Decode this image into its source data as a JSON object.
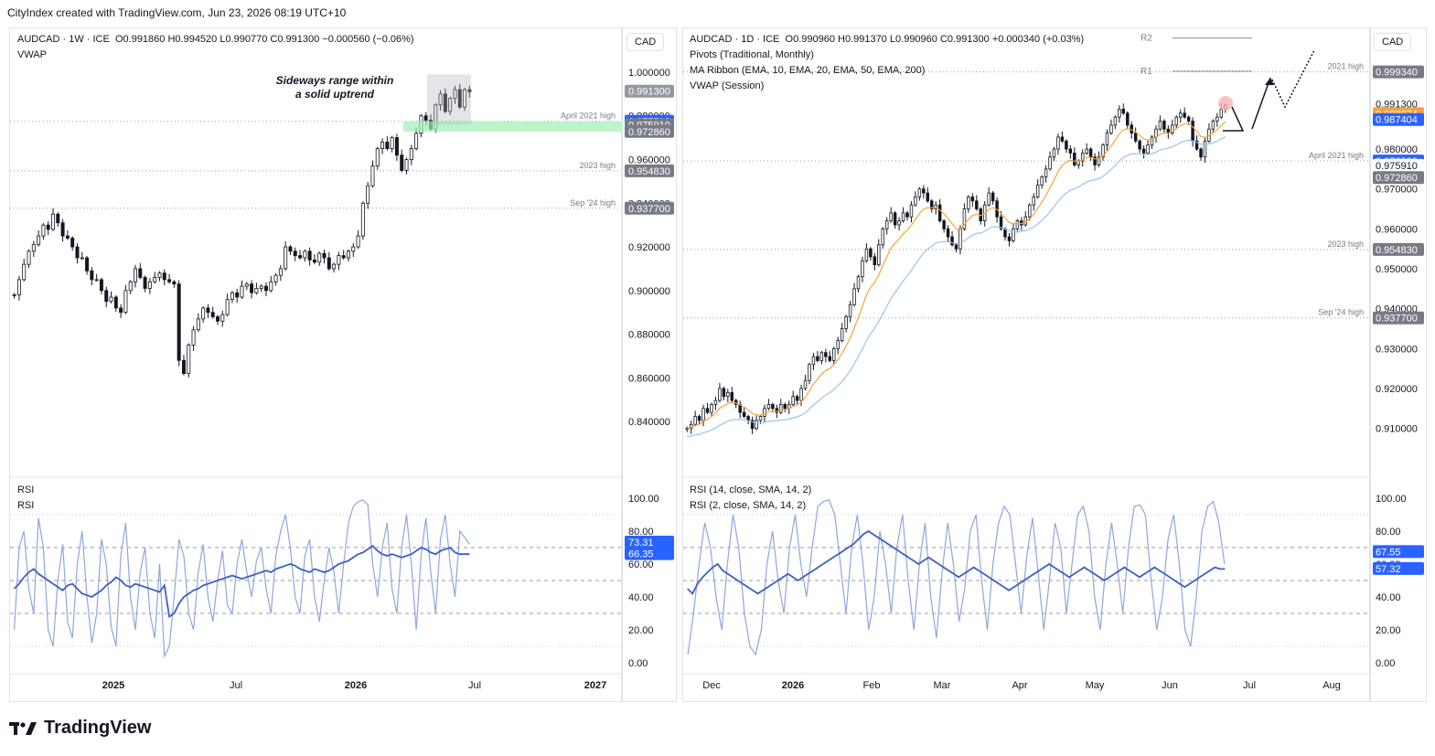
{
  "header": {
    "caption": "CityIndex created with TradingView.com, Jun 23, 2026 08:19 UTC+10"
  },
  "footer": {
    "brand": "TradingView"
  },
  "left_chart": {
    "currency": "CAD",
    "title": "AUDCAD · 1W · ICE",
    "ohlc": "O0.991860   H0.994520   L0.990770   C0.991300   −0.000560 (−0.06%)",
    "indicator": "VWAP",
    "annotation": [
      "Sideways range within",
      "a solid uptrend"
    ],
    "rsi_labels": [
      "RSI",
      "RSI"
    ]
  },
  "right_chart": {
    "currency": "CAD",
    "title": "AUDCAD · 1D · ICE",
    "ohlc": "O0.990960   H0.991370   L0.990960   C0.991300   +0.000340 (+0.03%)",
    "indicators": [
      "Pivots (Traditional, Monthly)",
      "MA Ribbon (EMA, 10, EMA, 20, EMA, 50, EMA, 200)",
      "VWAP (Session)"
    ],
    "rsi_labels": [
      "RSI (14, close, SMA, 14, 2)",
      "RSI (2, close, SMA, 14, 2)"
    ],
    "pivots": [
      "R2",
      "R1"
    ]
  },
  "chart_data": [
    {
      "type": "candlestick",
      "title": "AUDCAD · 1W · ICE",
      "x_ticks": [
        "2025",
        "Jul",
        "2026",
        "Jul",
        "2027"
      ],
      "y_ticks": [
        "1.000000",
        "0.980000",
        "0.960000",
        "0.940000",
        "0.920000",
        "0.900000",
        "0.880000",
        "0.860000",
        "0.840000"
      ],
      "ylim": [
        0.825,
        1.005
      ],
      "price_labels": [
        {
          "value": "0.991300",
          "color": "#9598a1"
        },
        {
          "value": "0.977513",
          "color": "#2962ff"
        },
        {
          "value": "0.975910",
          "color": "#787b86"
        },
        {
          "value": "0.972860",
          "color": "#787b86"
        },
        {
          "value": "0.960000",
          "color": "#ffffff"
        },
        {
          "value": "0.954830",
          "color": "#787b86"
        },
        {
          "value": "0.937700",
          "color": "#787b86"
        }
      ],
      "levels": [
        {
          "label": "April 2021 high",
          "value": 0.9775
        },
        {
          "label": "2023 high",
          "value": 0.9548
        },
        {
          "label": "Sep '24 high",
          "value": 0.9377
        }
      ],
      "close_series": [
        0.898,
        0.905,
        0.912,
        0.918,
        0.921,
        0.925,
        0.93,
        0.928,
        0.935,
        0.931,
        0.925,
        0.924,
        0.92,
        0.915,
        0.915,
        0.909,
        0.905,
        0.905,
        0.9,
        0.895,
        0.897,
        0.892,
        0.89,
        0.9,
        0.904,
        0.91,
        0.906,
        0.901,
        0.904,
        0.906,
        0.908,
        0.905,
        0.904,
        0.903,
        0.868,
        0.862,
        0.875,
        0.882,
        0.887,
        0.892,
        0.89,
        0.888,
        0.886,
        0.889,
        0.896,
        0.899,
        0.897,
        0.902,
        0.903,
        0.899,
        0.901,
        0.902,
        0.9,
        0.904,
        0.907,
        0.91,
        0.92,
        0.918,
        0.916,
        0.915,
        0.918,
        0.914,
        0.913,
        0.917,
        0.915,
        0.91,
        0.912,
        0.916,
        0.915,
        0.918,
        0.92,
        0.925,
        0.94,
        0.948,
        0.957,
        0.965,
        0.968,
        0.965,
        0.97,
        0.962,
        0.955,
        0.96,
        0.965,
        0.972,
        0.98,
        0.978,
        0.974,
        0.985,
        0.99,
        0.982,
        0.988,
        0.992,
        0.984,
        0.992,
        0.991
      ],
      "rsi": {
        "y_ticks": [
          "100.00",
          "80.00",
          "60.00",
          "40.00",
          "20.00",
          "0.00"
        ],
        "ylim": [
          0,
          100
        ],
        "labels": [
          {
            "value": "73.31",
            "color": "#2962ff"
          },
          {
            "value": "66.35",
            "color": "#2962ff"
          }
        ],
        "rsi14": [
          45,
          48,
          52,
          55,
          57,
          54,
          52,
          50,
          48,
          46,
          44,
          47,
          48,
          45,
          42,
          41,
          40,
          42,
          44,
          47,
          49,
          52,
          50,
          47,
          46,
          48,
          47,
          46,
          45,
          44,
          43,
          47,
          28,
          30,
          36,
          40,
          42,
          44,
          45,
          47,
          48,
          49,
          50,
          51,
          52,
          53,
          52,
          51,
          52,
          53,
          54,
          55,
          56,
          55,
          57,
          58,
          59,
          60,
          59,
          57,
          56,
          55,
          57,
          56,
          55,
          56,
          58,
          60,
          61,
          62,
          64,
          66,
          67,
          69,
          71,
          68,
          66,
          65,
          66,
          65,
          64,
          65,
          66,
          68,
          70,
          69,
          67,
          66,
          68,
          69,
          70,
          67,
          66,
          66,
          66
        ],
        "rsi2": [
          20,
          70,
          80,
          45,
          30,
          88,
          70,
          20,
          10,
          50,
          72,
          25,
          15,
          60,
          80,
          40,
          12,
          30,
          75,
          60,
          22,
          10,
          65,
          85,
          40,
          20,
          55,
          70,
          30,
          15,
          60,
          4,
          10,
          40,
          75,
          65,
          30,
          20,
          55,
          72,
          40,
          25,
          50,
          68,
          35,
          30,
          60,
          75,
          55,
          40,
          62,
          70,
          45,
          30,
          65,
          80,
          90,
          70,
          40,
          30,
          65,
          75,
          40,
          25,
          50,
          70,
          55,
          30,
          60,
          85,
          95,
          98,
          99,
          96,
          60,
          40,
          70,
          85,
          45,
          30,
          70,
          90,
          60,
          20,
          65,
          88,
          55,
          30,
          75,
          90,
          60,
          40,
          80,
          76,
          72
        ]
      }
    },
    {
      "type": "candlestick",
      "title": "AUDCAD · 1D · ICE",
      "x_ticks": [
        "Dec",
        "2026",
        "Feb",
        "Mar",
        "Apr",
        "May",
        "Jun",
        "Jul",
        "Aug"
      ],
      "y_ticks": [
        "0.980000",
        "0.970000",
        "0.960000",
        "0.950000",
        "0.940000",
        "0.930000",
        "0.920000",
        "0.910000"
      ],
      "ylim": [
        0.9035,
        1.002
      ],
      "price_labels": [
        {
          "value": "0.999340",
          "color": "#787b86"
        },
        {
          "value": "0.991300",
          "color": "#ffffff"
        },
        {
          "value": "0.988874",
          "color": "#f7a33b"
        },
        {
          "value": "0.987404",
          "color": "#2962ff"
        },
        {
          "value": "0.976993",
          "color": "#2962ff"
        },
        {
          "value": "0.975910",
          "color": "#ffffff"
        },
        {
          "value": "0.972860",
          "color": "#787b86"
        },
        {
          "value": "0.954830",
          "color": "#787b86"
        },
        {
          "value": "0.937700",
          "color": "#787b86"
        }
      ],
      "levels": [
        {
          "label": "2021 high",
          "value": 0.99934
        },
        {
          "label": "April 2021 high",
          "value": 0.97699
        },
        {
          "label": "2023 high",
          "value": 0.95483
        },
        {
          "label": "Sep '24 high",
          "value": 0.9377
        }
      ],
      "close_series": [
        0.91,
        0.911,
        0.913,
        0.912,
        0.915,
        0.914,
        0.916,
        0.917,
        0.92,
        0.918,
        0.919,
        0.917,
        0.916,
        0.914,
        0.913,
        0.912,
        0.91,
        0.912,
        0.913,
        0.915,
        0.916,
        0.915,
        0.914,
        0.916,
        0.915,
        0.916,
        0.918,
        0.917,
        0.92,
        0.922,
        0.926,
        0.928,
        0.927,
        0.929,
        0.928,
        0.927,
        0.93,
        0.932,
        0.935,
        0.938,
        0.941,
        0.945,
        0.948,
        0.952,
        0.955,
        0.953,
        0.951,
        0.956,
        0.96,
        0.962,
        0.964,
        0.961,
        0.962,
        0.964,
        0.963,
        0.966,
        0.968,
        0.97,
        0.969,
        0.967,
        0.965,
        0.966,
        0.962,
        0.96,
        0.958,
        0.956,
        0.955,
        0.96,
        0.965,
        0.968,
        0.967,
        0.965,
        0.962,
        0.966,
        0.969,
        0.967,
        0.963,
        0.96,
        0.958,
        0.957,
        0.96,
        0.962,
        0.961,
        0.963,
        0.966,
        0.968,
        0.971,
        0.973,
        0.975,
        0.978,
        0.98,
        0.983,
        0.982,
        0.98,
        0.979,
        0.976,
        0.977,
        0.979,
        0.98,
        0.978,
        0.976,
        0.978,
        0.981,
        0.984,
        0.986,
        0.988,
        0.99,
        0.989,
        0.986,
        0.984,
        0.982,
        0.98,
        0.979,
        0.981,
        0.983,
        0.985,
        0.987,
        0.985,
        0.984,
        0.986,
        0.988,
        0.989,
        0.988,
        0.987,
        0.982,
        0.98,
        0.978,
        0.982,
        0.985,
        0.987,
        0.988,
        0.99,
        0.991
      ],
      "rsi": {
        "y_ticks": [
          "100.00",
          "80.00",
          "60.00",
          "40.00",
          "20.00",
          "0.00"
        ],
        "ylim": [
          0,
          100
        ],
        "labels": [
          {
            "value": "67.55",
            "color": "#2962ff"
          },
          {
            "value": "57.32",
            "color": "#2962ff"
          }
        ],
        "rsi14": [
          45,
          42,
          48,
          52,
          55,
          58,
          60,
          56,
          54,
          52,
          50,
          48,
          46,
          44,
          42,
          44,
          46,
          48,
          50,
          52,
          54,
          52,
          50,
          52,
          54,
          56,
          58,
          60,
          62,
          64,
          66,
          68,
          70,
          72,
          75,
          78,
          80,
          78,
          76,
          74,
          72,
          70,
          68,
          66,
          64,
          62,
          60,
          62,
          64,
          62,
          60,
          58,
          56,
          54,
          52,
          54,
          56,
          58,
          56,
          54,
          52,
          50,
          48,
          46,
          44,
          46,
          48,
          50,
          52,
          54,
          56,
          58,
          60,
          58,
          56,
          54,
          52,
          54,
          56,
          58,
          56,
          54,
          52,
          50,
          52,
          54,
          56,
          58,
          56,
          54,
          52,
          54,
          56,
          58,
          56,
          54,
          52,
          50,
          48,
          46,
          48,
          50,
          52,
          54,
          56,
          58,
          57,
          57
        ],
        "rsi2": [
          5,
          30,
          60,
          85,
          70,
          40,
          20,
          60,
          90,
          70,
          30,
          10,
          5,
          20,
          60,
          80,
          50,
          30,
          70,
          90,
          60,
          40,
          70,
          95,
          98,
          99,
          90,
          60,
          30,
          70,
          90,
          60,
          20,
          40,
          80,
          60,
          30,
          70,
          90,
          50,
          20,
          60,
          85,
          40,
          15,
          55,
          85,
          60,
          25,
          45,
          80,
          90,
          50,
          20,
          60,
          85,
          95,
          90,
          60,
          30,
          65,
          88,
          55,
          20,
          50,
          85,
          70,
          30,
          60,
          90,
          95,
          80,
          40,
          20,
          60,
          85,
          60,
          30,
          70,
          95,
          96,
          90,
          50,
          20,
          40,
          75,
          90,
          60,
          20,
          10,
          40,
          80,
          95,
          98,
          85,
          60
        ]
      }
    }
  ]
}
